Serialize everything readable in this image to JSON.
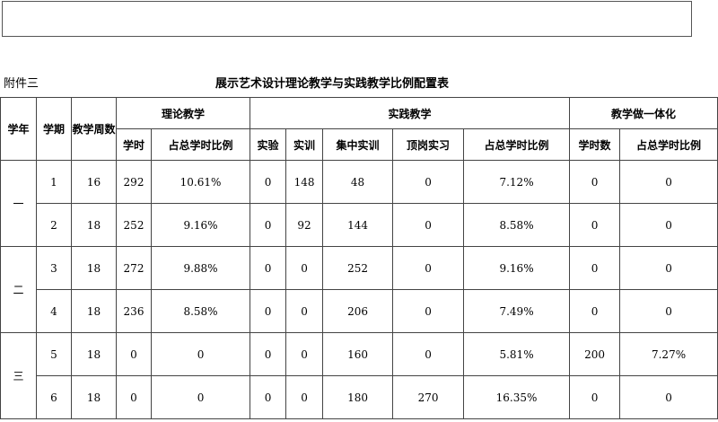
{
  "annex": "附件三",
  "title": "展示艺术设计理论教学与实践教学比例配置表",
  "headers": {
    "year": "学年",
    "term": "学期",
    "weeks": "教学周数",
    "theory": "理论教学",
    "practice": "实践教学",
    "integrated": "教学做一体化",
    "theory_hours": "学时",
    "theory_ratio": "占总学时比例",
    "experiment": "实验",
    "training": "实训",
    "concentrated": "集中实训",
    "internship": "顶岗实习",
    "practice_ratio": "占总学时比例",
    "int_hours": "学时数",
    "int_ratio": "占总学时比例"
  },
  "years": [
    "一",
    "二",
    "三"
  ],
  "rows": [
    [
      "1",
      "16",
      "292",
      "10.61%",
      "0",
      "148",
      "48",
      "0",
      "7.12%",
      "0",
      "0"
    ],
    [
      "2",
      "18",
      "252",
      "9.16%",
      "0",
      "92",
      "144",
      "0",
      "8.58%",
      "0",
      "0"
    ],
    [
      "3",
      "18",
      "272",
      "9.88%",
      "0",
      "0",
      "252",
      "0",
      "9.16%",
      "0",
      "0"
    ],
    [
      "4",
      "18",
      "236",
      "8.58%",
      "0",
      "0",
      "206",
      "0",
      "7.49%",
      "0",
      "0"
    ],
    [
      "5",
      "18",
      "0",
      "0",
      "0",
      "0",
      "160",
      "0",
      "5.81%",
      "200",
      "7.27%"
    ],
    [
      "6",
      "18",
      "0",
      "0",
      "0",
      "0",
      "180",
      "270",
      "16.35%",
      "0",
      "0"
    ]
  ]
}
